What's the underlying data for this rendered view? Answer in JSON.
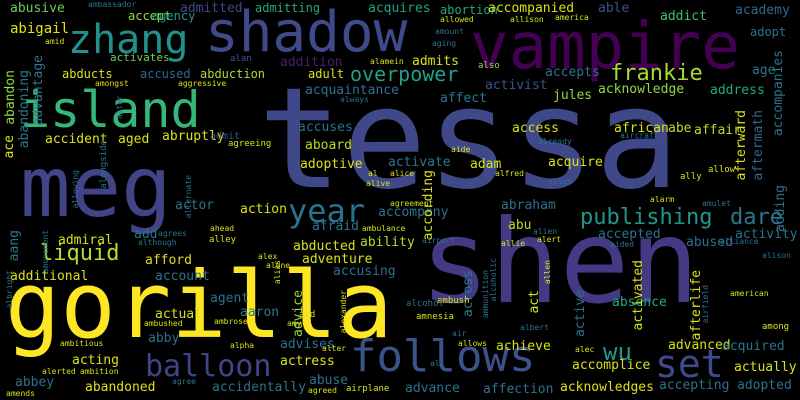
{
  "words": {
    "tessa": "tessa",
    "meg": "meg",
    "shen": "shen",
    "gorilla": "gorilla",
    "shadow": "shadow",
    "vampire": "vampire",
    "island": "island",
    "zhang": "zhang",
    "follows": "follows",
    "balloon": "balloon",
    "year": "year",
    "liquid": "liquid",
    "overpower": "overpower",
    "frankie": "frankie",
    "publishing": "publishing",
    "dare": "dare",
    "set": "set",
    "wu": "wu",
    "abusive": "abusive",
    "abigail": "abigail",
    "abducts": "abducts",
    "ambassador": "ambassador",
    "accept": "accept",
    "agency": "agency",
    "admitted": "admitted",
    "admitting": "admitting",
    "acquires": "acquires",
    "abortion": "abortion",
    "accompanied": "accompanied",
    "able": "able",
    "addict": "addict",
    "academy": "academy",
    "adopt": "adopt",
    "activates": "activates",
    "alan": "alan",
    "addition": "addition",
    "alamein": "alamein",
    "admits": "admits",
    "also": "also",
    "accepts": "accepts",
    "age": "age",
    "accused": "accused",
    "abduction": "abduction",
    "adult": "adult",
    "activist": "activist",
    "acknowledge": "acknowledge",
    "acquaintance": "acquaintance",
    "affect": "affect",
    "jules": "jules",
    "address": "address",
    "accompanies": "accompanies",
    "aftermath": "aftermath",
    "afterward": "afterward",
    "accident": "accident",
    "aged": "aged",
    "abruptly": "abruptly",
    "accuses": "accuses",
    "access": "access",
    "african": "african",
    "abe": "abe",
    "affair": "affair",
    "aboard": "aboard",
    "activate": "activate",
    "acquire": "acquire",
    "adoptive": "adoptive",
    "adam": "adam",
    "abraham": "abraham",
    "according": "according",
    "actor": "actor",
    "action": "action",
    "admiral": "admiral",
    "add": "add",
    "afraid": "afraid",
    "accompany": "accompany",
    "ability": "ability",
    "abu": "abu",
    "accepted": "accepted",
    "activity": "activity",
    "abducted": "abducted",
    "adventure": "adventure",
    "abused": "abused",
    "additional": "additional",
    "afford": "afford",
    "account": "account",
    "accusing": "accusing",
    "across": "across",
    "act": "act",
    "active": "active",
    "activated": "activated",
    "absence": "absence",
    "afterlife": "afterlife",
    "agent": "agent",
    "aaron": "aaron",
    "actual": "actual",
    "abby": "abby",
    "advice": "advice",
    "advises": "advises",
    "actress": "actress",
    "acting": "acting",
    "achieve": "achieve",
    "advanced": "advanced",
    "acquired": "acquired",
    "actually": "actually",
    "accomplice": "accomplice",
    "abbey": "abbey",
    "abandoned": "abandoned",
    "accidentally": "accidentally",
    "abuse": "abuse",
    "advance": "advance",
    "affection": "affection",
    "acknowledges": "acknowledges",
    "accepting": "accepting",
    "adopted": "adopted",
    "abandon": "abandon",
    "abandoning": "abandoning",
    "advantage": "advantage",
    "ace": "ace",
    "aang": "aang",
    "amongst": "amongst",
    "aggressive": "aggressive",
    "admit": "admit",
    "agreeing": "agreeing",
    "always": "always",
    "already": "already",
    "aircraft": "aircraft",
    "allow": "allow",
    "ally": "ally",
    "alive": "alive",
    "alice": "alice",
    "alfred": "alfred",
    "align": "align",
    "alarm": "alarm",
    "ahead": "ahead",
    "alley": "alley",
    "although": "although",
    "agrees": "agrees",
    "ambulance": "ambulance",
    "airport": "airport",
    "alien": "alien",
    "allie": "allie",
    "alert": "alert",
    "aided": "aided",
    "alliance": "alliance",
    "alison": "alison",
    "american": "american",
    "airfield": "airfield",
    "among": "among",
    "alex": "alex",
    "alone": "alone",
    "ambush": "ambush",
    "ambrose": "ambrose",
    "amy": "amy",
    "aid": "aid",
    "alexander": "alexander",
    "amnesia": "amnesia",
    "alcohol": "alcohol",
    "ambushed": "ambushed",
    "ambitious": "ambitious",
    "alpha": "alpha",
    "alter": "alter",
    "ali": "ali",
    "alec": "alec",
    "albert": "albert",
    "allows": "allows",
    "air": "air",
    "alerted": "alerted",
    "ambition": "ambition",
    "agree": "agree",
    "agreed": "agreed",
    "airplane": "airplane",
    "amends": "amends",
    "allowed": "allowed",
    "allison": "allison",
    "america": "america",
    "amount": "amount",
    "aging": "aging",
    "amid": "amid",
    "aide": "aide",
    "al": "al",
    "agreement": "agreement",
    "alongside": "alongside",
    "allowing": "allowing",
    "amusement": "amusement",
    "albright": "albright",
    "alternate": "alternate",
    "alias": "alias",
    "adding": "adding",
    "amulet": "amulet",
    "altar": "altar",
    "alcoholic": "alcoholic",
    "ammunition": "ammunition",
    "allen": "allen"
  }
}
